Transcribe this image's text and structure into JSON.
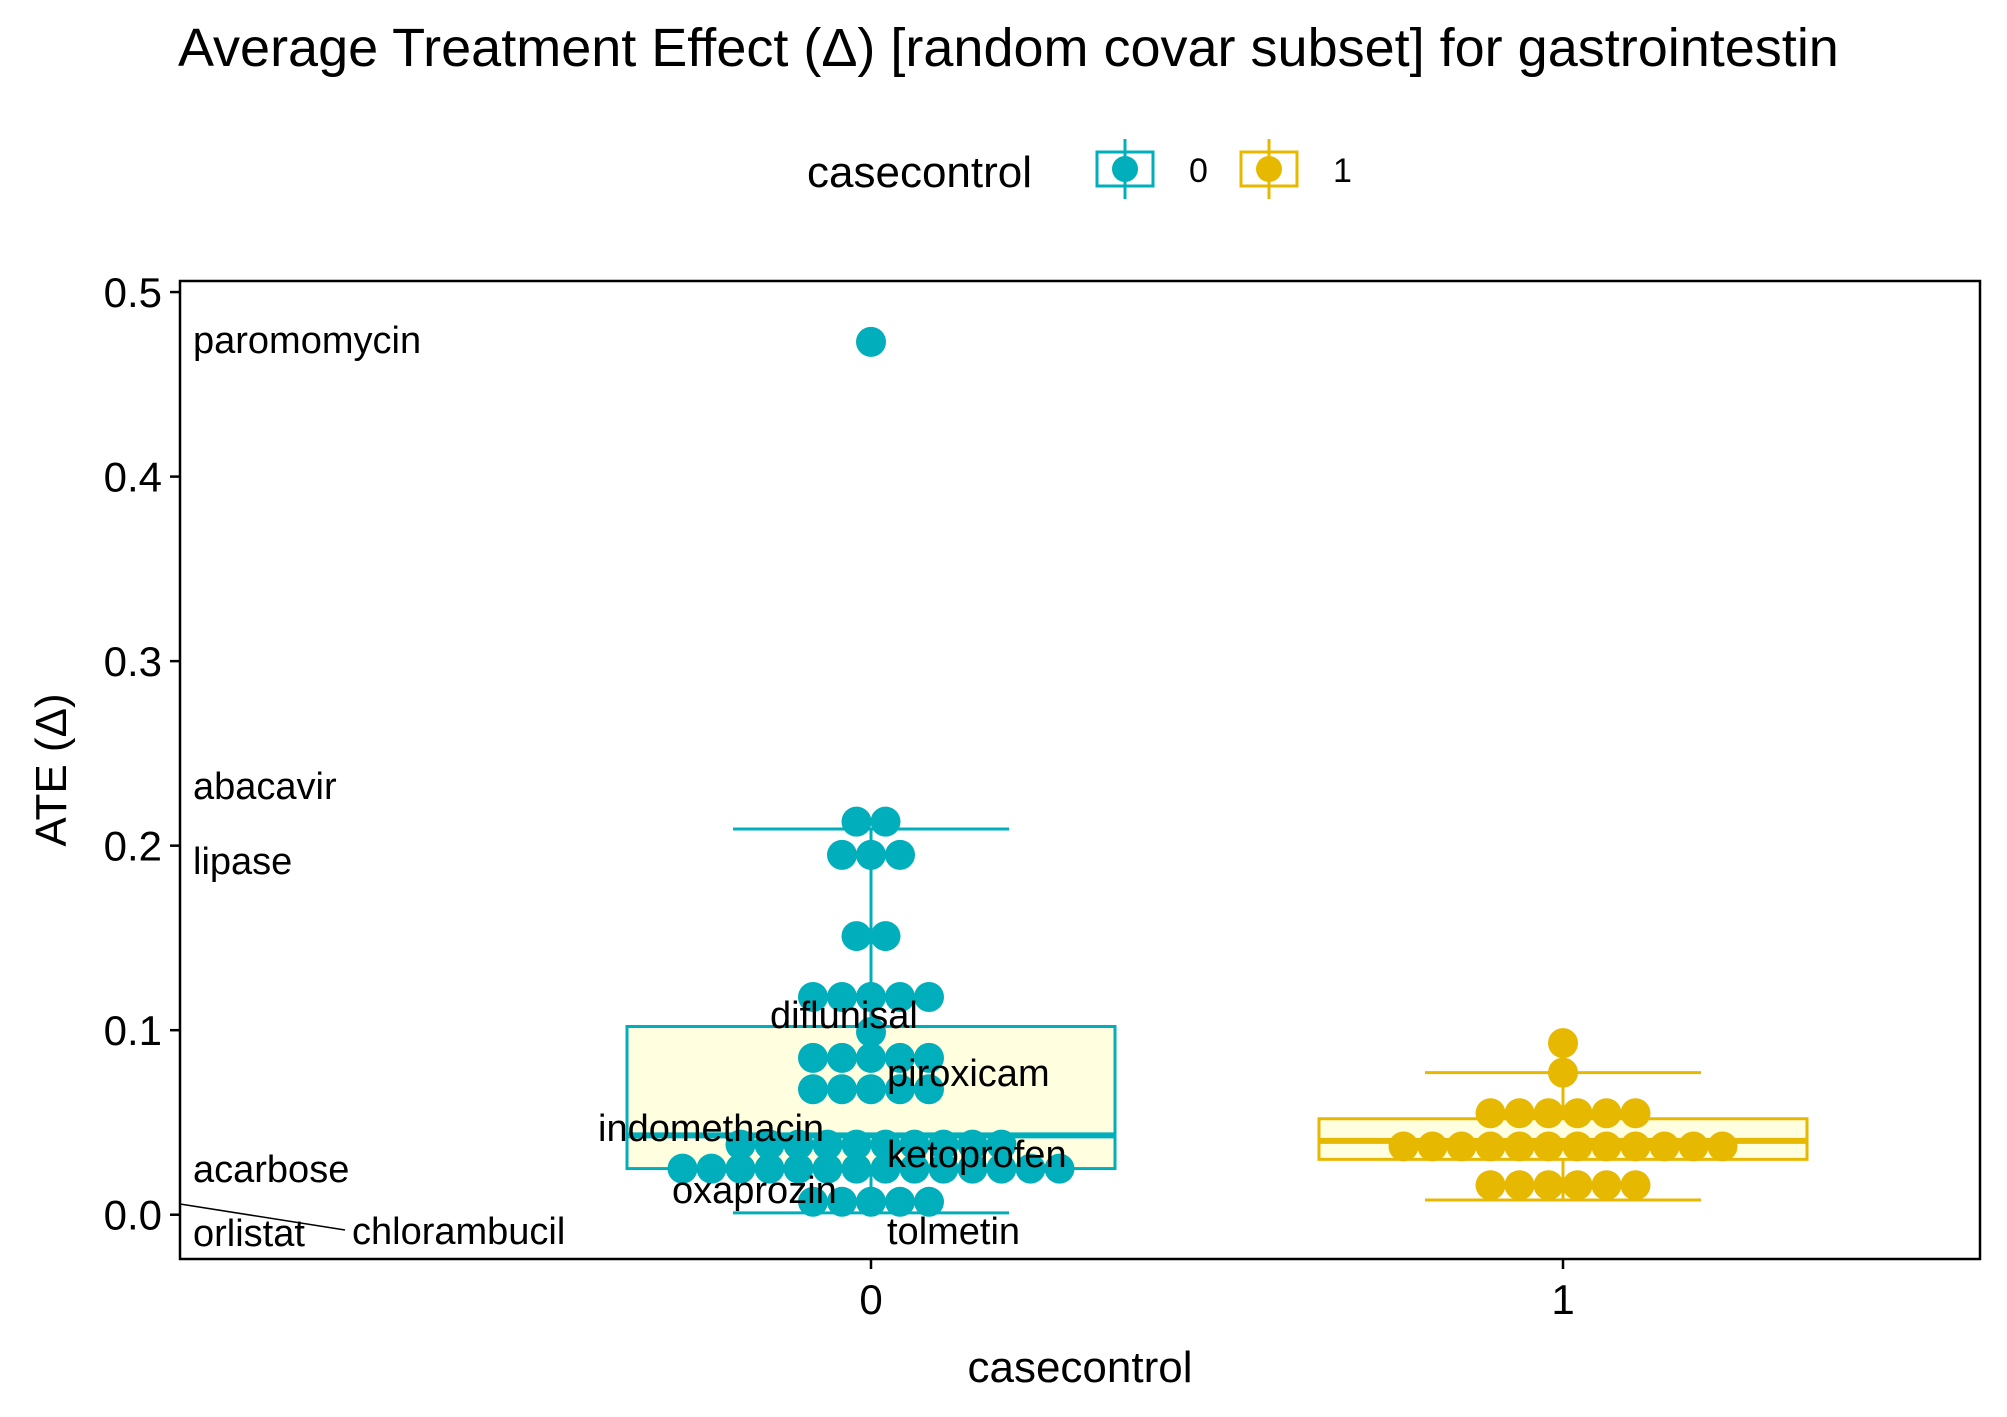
{
  "chart_data": {
    "type": "box",
    "title": "Average Treatment Effect (Δ)  [random covar subset] for gastrointestin",
    "xlabel": "casecontrol",
    "ylabel": "ATE (Δ)",
    "categories": [
      "0",
      "1"
    ],
    "ylim": [
      -0.024,
      0.506
    ],
    "yticks": [
      0.0,
      0.1,
      0.2,
      0.3,
      0.4,
      0.5
    ],
    "ytick_labels": [
      "0.0",
      "0.1",
      "0.2",
      "0.3",
      "0.4",
      "0.5"
    ],
    "grid": false,
    "legend": {
      "title": "casecontrol",
      "position": "top",
      "entries": [
        {
          "label": "0",
          "color": "#00AFBB"
        },
        {
          "label": "1",
          "color": "#E7B800"
        }
      ]
    },
    "colors": {
      "group0": "#00AFBB",
      "group1": "#E7B800",
      "box0_fill": "#FFFFE0",
      "box1_fill": "#FFFFE0"
    },
    "boxes": [
      {
        "category": "0",
        "whisker_low": 0.001,
        "q1": 0.025,
        "median": 0.043,
        "q3": 0.102,
        "whisker_high": 0.209
      },
      {
        "category": "1",
        "whisker_low": 0.008,
        "q1": 0.03,
        "median": 0.04,
        "q3": 0.052,
        "whisker_high": 0.077
      }
    ],
    "series": [
      {
        "category": "0",
        "values": [
          0.473,
          0.213,
          0.213,
          0.195,
          0.195,
          0.195,
          0.151,
          0.151,
          0.118,
          0.118,
          0.118,
          0.118,
          0.118,
          0.099,
          0.085,
          0.085,
          0.085,
          0.085,
          0.085,
          0.068,
          0.068,
          0.068,
          0.068,
          0.068,
          0.038,
          0.038,
          0.038,
          0.038,
          0.038,
          0.038,
          0.038,
          0.038,
          0.038,
          0.038,
          0.025,
          0.025,
          0.025,
          0.025,
          0.025,
          0.025,
          0.025,
          0.025,
          0.025,
          0.025,
          0.025,
          0.025,
          0.025,
          0.025,
          0.007,
          0.007,
          0.007,
          0.007,
          0.007
        ]
      },
      {
        "category": "1",
        "values": [
          0.093,
          0.077,
          0.055,
          0.055,
          0.055,
          0.055,
          0.055,
          0.055,
          0.037,
          0.037,
          0.037,
          0.037,
          0.037,
          0.037,
          0.037,
          0.037,
          0.037,
          0.037,
          0.037,
          0.037,
          0.016,
          0.016,
          0.016,
          0.016,
          0.016,
          0.016
        ]
      }
    ],
    "annotations": [
      "paromomycin",
      "abacavir",
      "lipase",
      "diflunisal",
      "piroxicam",
      "indomethacin",
      "ketoprofen",
      "oxaprozin",
      "tolmetin",
      "acarbose",
      "orlistat",
      "chlorambucil"
    ]
  }
}
